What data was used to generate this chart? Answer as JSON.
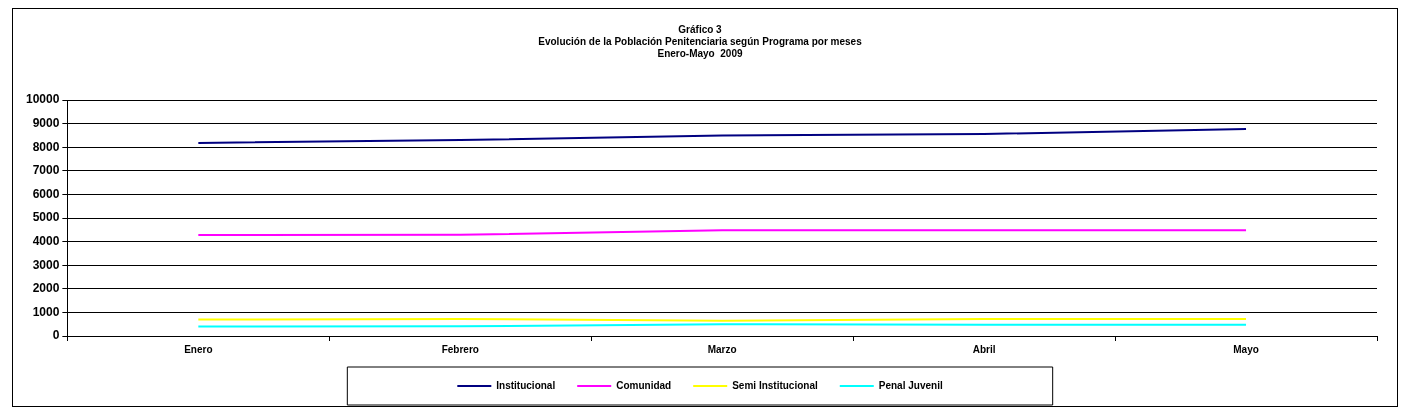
{
  "chart_data": {
    "type": "line",
    "title": [
      "Gráfico 3",
      "Evolución de la Población Penitenciaria según Programa por meses",
      "Enero-Mayo  2009"
    ],
    "categories": [
      "Enero",
      "Febrero",
      "Marzo",
      "Abril",
      "Mayo"
    ],
    "series": [
      {
        "name": "Institucional",
        "color": "#000080",
        "values": [
          8180,
          8300,
          8500,
          8560,
          8770
        ]
      },
      {
        "name": "Comunidad",
        "color": "#ff00ff",
        "values": [
          4280,
          4290,
          4480,
          4480,
          4480
        ]
      },
      {
        "name": "Semi Institucional",
        "color": "#ffff00",
        "values": [
          700,
          720,
          650,
          720,
          720
        ]
      },
      {
        "name": "Penal Juvenil",
        "color": "#00ffff",
        "values": [
          400,
          410,
          500,
          480,
          480
        ]
      }
    ],
    "ylim": [
      0,
      10000
    ],
    "yticks": [
      0,
      1000,
      2000,
      3000,
      4000,
      5000,
      6000,
      7000,
      8000,
      9000,
      10000
    ],
    "grid": "y",
    "legend": "bottom",
    "marker": "none",
    "line_style": "solid"
  }
}
